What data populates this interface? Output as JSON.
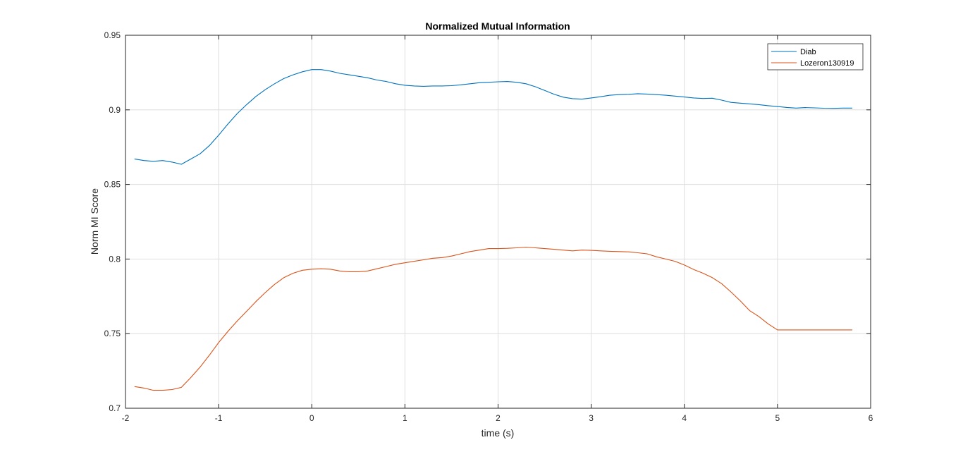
{
  "chart_data": {
    "type": "line",
    "title": "Normalized Mutual Information",
    "xlabel": "time (s)",
    "ylabel": "Norm MI Score",
    "xlim": [
      -2,
      6
    ],
    "ylim": [
      0.7,
      0.95
    ],
    "xticks": [
      -2,
      -1,
      0,
      1,
      2,
      3,
      4,
      5,
      6
    ],
    "xtick_labels": [
      "-2",
      "-1",
      "0",
      "1",
      "2",
      "3",
      "4",
      "5",
      "6"
    ],
    "yticks": [
      0.7,
      0.75,
      0.8,
      0.85,
      0.9,
      0.95
    ],
    "ytick_labels": [
      "0.7",
      "0.75",
      "0.8",
      "0.85",
      "0.9",
      "0.95"
    ],
    "grid": true,
    "legend_position": "top-right",
    "series": [
      {
        "name": "Diab",
        "color": "#0072BD",
        "x": [
          -1.9,
          -1.8,
          -1.7,
          -1.6,
          -1.5,
          -1.4,
          -1.3,
          -1.2,
          -1.1,
          -1.0,
          -0.9,
          -0.8,
          -0.7,
          -0.6,
          -0.5,
          -0.4,
          -0.3,
          -0.2,
          -0.1,
          0.0,
          0.1,
          0.2,
          0.3,
          0.4,
          0.5,
          0.6,
          0.7,
          0.8,
          0.9,
          1.0,
          1.1,
          1.2,
          1.3,
          1.4,
          1.5,
          1.6,
          1.7,
          1.8,
          1.9,
          2.0,
          2.1,
          2.2,
          2.3,
          2.4,
          2.5,
          2.6,
          2.7,
          2.8,
          2.9,
          3.0,
          3.1,
          3.2,
          3.3,
          3.4,
          3.5,
          3.6,
          3.7,
          3.8,
          3.9,
          4.0,
          4.1,
          4.2,
          4.3,
          4.4,
          4.5,
          4.6,
          4.7,
          4.8,
          4.9,
          5.0,
          5.1,
          5.2,
          5.3,
          5.4,
          5.5,
          5.6,
          5.7,
          5.8
        ],
        "y": [
          0.867,
          0.866,
          0.8655,
          0.866,
          0.865,
          0.8635,
          0.867,
          0.8705,
          0.876,
          0.883,
          0.8905,
          0.8975,
          0.9035,
          0.909,
          0.9135,
          0.9175,
          0.921,
          0.9235,
          0.9255,
          0.927,
          0.927,
          0.926,
          0.9245,
          0.9235,
          0.9225,
          0.9215,
          0.92,
          0.919,
          0.9175,
          0.9165,
          0.916,
          0.9158,
          0.916,
          0.916,
          0.9162,
          0.9168,
          0.9175,
          0.9182,
          0.9185,
          0.9188,
          0.919,
          0.9185,
          0.9175,
          0.9155,
          0.913,
          0.9105,
          0.9085,
          0.9075,
          0.9072,
          0.908,
          0.9088,
          0.9098,
          0.9102,
          0.9104,
          0.9108,
          0.9106,
          0.9102,
          0.9098,
          0.9092,
          0.9086,
          0.908,
          0.9076,
          0.9078,
          0.9065,
          0.905,
          0.9045,
          0.904,
          0.9035,
          0.9028,
          0.9022,
          0.9016,
          0.9012,
          0.9015,
          0.9013,
          0.9011,
          0.901,
          0.9012,
          0.9012
        ]
      },
      {
        "name": "Lozeron130919",
        "color": "#D95319",
        "x": [
          -1.9,
          -1.8,
          -1.7,
          -1.6,
          -1.5,
          -1.4,
          -1.3,
          -1.2,
          -1.1,
          -1.0,
          -0.9,
          -0.8,
          -0.7,
          -0.6,
          -0.5,
          -0.4,
          -0.3,
          -0.2,
          -0.1,
          0.0,
          0.1,
          0.2,
          0.3,
          0.4,
          0.5,
          0.6,
          0.7,
          0.8,
          0.9,
          1.0,
          1.1,
          1.2,
          1.3,
          1.4,
          1.5,
          1.6,
          1.7,
          1.8,
          1.9,
          2.0,
          2.1,
          2.2,
          2.3,
          2.4,
          2.5,
          2.6,
          2.7,
          2.8,
          2.9,
          3.0,
          3.1,
          3.2,
          3.3,
          3.4,
          3.5,
          3.6,
          3.7,
          3.8,
          3.9,
          4.0,
          4.1,
          4.2,
          4.3,
          4.4,
          4.5,
          4.6,
          4.7,
          4.8,
          4.9,
          5.0,
          5.1,
          5.2,
          5.3,
          5.4,
          5.5,
          5.6,
          5.7,
          5.8
        ],
        "y": [
          0.7145,
          0.7135,
          0.712,
          0.712,
          0.7125,
          0.714,
          0.7205,
          0.7275,
          0.7355,
          0.744,
          0.7515,
          0.7585,
          0.765,
          0.7715,
          0.7775,
          0.783,
          0.7875,
          0.7905,
          0.7925,
          0.7932,
          0.7935,
          0.7932,
          0.792,
          0.7915,
          0.7915,
          0.792,
          0.7935,
          0.795,
          0.7965,
          0.7975,
          0.7985,
          0.7995,
          0.8005,
          0.801,
          0.802,
          0.8035,
          0.805,
          0.806,
          0.807,
          0.807,
          0.8072,
          0.8075,
          0.808,
          0.8075,
          0.807,
          0.8065,
          0.806,
          0.8055,
          0.806,
          0.8058,
          0.8055,
          0.8052,
          0.805,
          0.8048,
          0.8042,
          0.8035,
          0.8015,
          0.8,
          0.7985,
          0.796,
          0.793,
          0.7905,
          0.7875,
          0.7835,
          0.778,
          0.772,
          0.7655,
          0.7615,
          0.7565,
          0.7525,
          0.7525,
          0.7525,
          0.7525,
          0.7525,
          0.7525,
          0.7525,
          0.7525,
          0.7525
        ]
      }
    ]
  }
}
